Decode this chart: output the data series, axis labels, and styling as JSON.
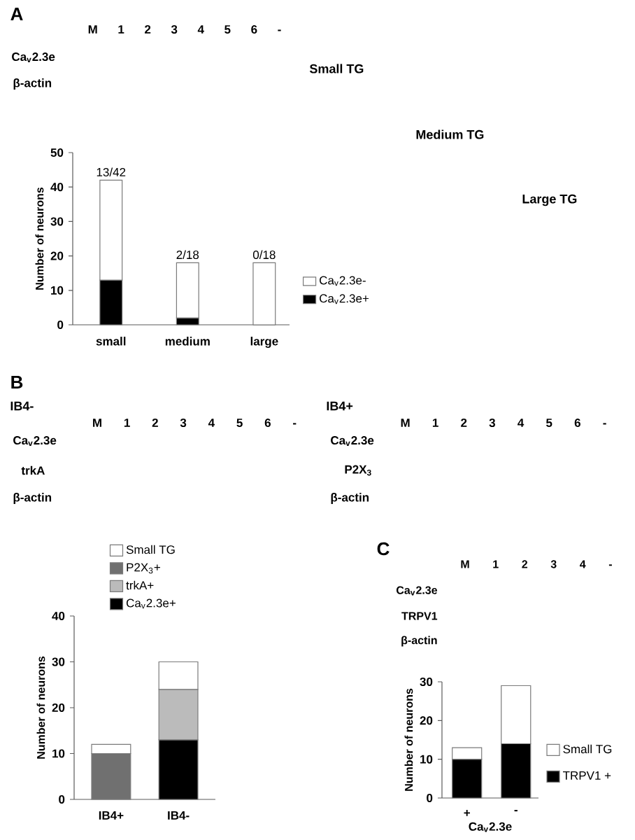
{
  "chart_data": [
    {
      "type": "bar",
      "stacked": true,
      "categories": [
        "small",
        "medium",
        "large"
      ],
      "ylabel": "Number of neurons",
      "ylim": [
        0,
        50
      ],
      "yticks": [
        0,
        10,
        20,
        30,
        40,
        50
      ],
      "legend": "right",
      "series": [
        {
          "name": "Ca$_{v}$2.3e+",
          "color": "#000000",
          "values": [
            13,
            2,
            0
          ]
        },
        {
          "name": "Ca$_{v}$2.3e-",
          "color": "#ffffff",
          "values": [
            29,
            16,
            18
          ]
        }
      ],
      "annotations": [
        "A",
        "M 1 2 3 4 5 6 -",
        "Ca$_{v}$2.3e",
        "β-actin",
        "Small TG",
        "Medium TG",
        "Large TG",
        {
          "text": "13/42",
          "x": "small",
          "y": 42
        },
        {
          "text": "2/18",
          "x": "medium",
          "y": 18
        },
        {
          "text": "0/18",
          "x": "large",
          "y": 18
        }
      ]
    },
    {
      "type": "bar",
      "stacked": true,
      "categories": [
        "IB4+",
        "IB4-"
      ],
      "ylabel": "Number of neurons",
      "ylim": [
        0,
        40
      ],
      "yticks": [
        0,
        10,
        20,
        30,
        40
      ],
      "legend": "top",
      "series": [
        {
          "name": "Ca$_{v}$2.3e+",
          "color": "#000000",
          "values": [
            null,
            13
          ]
        },
        {
          "name": "trkA+",
          "color": "#bbbbbb",
          "values": [
            null,
            11
          ]
        },
        {
          "name": "P2X$_{3}$+",
          "color": "#707070",
          "values": [
            10,
            null
          ]
        },
        {
          "name": "Small TG",
          "color": "#ffffff",
          "values": [
            2,
            6
          ]
        }
      ],
      "annotations": [
        "B",
        "IB4-",
        "IB4+",
        "M 1 2 3 4 5 6 -",
        "M 1 2 3 4 5 6 -",
        "Ca$_{v}$2.3e",
        "trkA",
        "β-actin",
        "Ca$_{v}$2.3e",
        "P2X$_{3}$",
        "β-actin"
      ]
    },
    {
      "type": "bar",
      "stacked": true,
      "categories": [
        "+",
        "-"
      ],
      "xlabel": "Ca$_{v}$2.3e",
      "ylabel": "Number of neurons",
      "ylim": [
        0,
        30
      ],
      "yticks": [
        0,
        10,
        20,
        30
      ],
      "legend": "right",
      "series": [
        {
          "name": "TRPV1 +",
          "color": "#000000",
          "values": [
            10,
            14
          ]
        },
        {
          "name": "Small TG",
          "color": "#ffffff",
          "values": [
            3,
            15
          ]
        }
      ],
      "annotations": [
        "C",
        "M 1 2 3 4 -",
        "Ca$_{v}$2.3e",
        "TRPV1",
        "β-actin"
      ]
    }
  ]
}
